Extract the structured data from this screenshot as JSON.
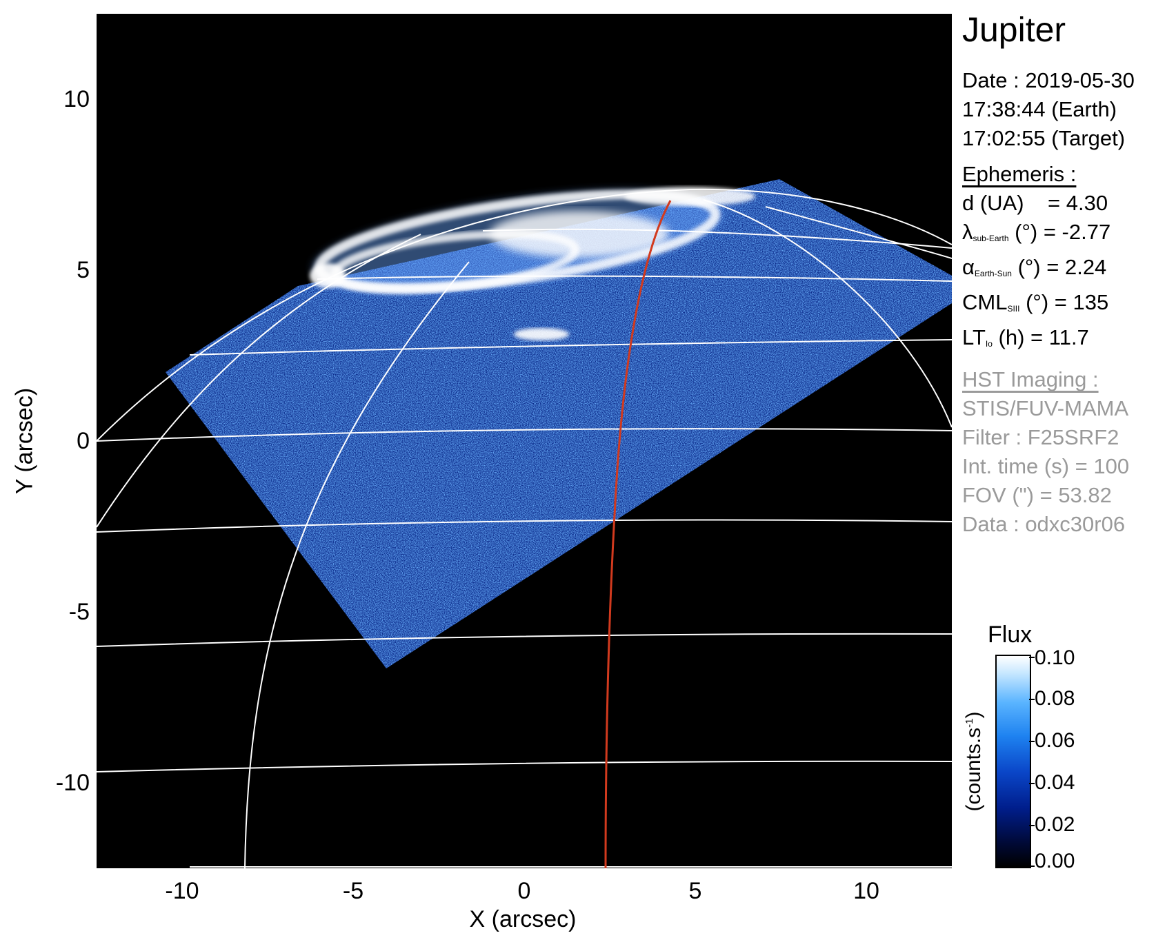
{
  "title": "Jupiter",
  "observation": {
    "date_line": "Date : 2019-05-30",
    "earth_time": "17:38:44 (Earth)",
    "target_time": "17:02:55 (Target)"
  },
  "ephemeris": {
    "header": "Ephemeris :",
    "distance": {
      "label": "d (UA)",
      "value": "= 4.30"
    },
    "sub_earth_lat": {
      "symbol": "λ",
      "subscript": "sub-Earth",
      "unit": "(°)",
      "value": "= -2.77"
    },
    "earth_sun_angle": {
      "symbol": "α",
      "subscript": "Earth-Sun",
      "unit": "(°)",
      "value": "= 2.24"
    },
    "cml": {
      "symbol": "CML",
      "subscript": "SIII",
      "unit": "(°)",
      "value": "= 135"
    },
    "lt_io": {
      "symbol": "LT",
      "subscript": "Io",
      "unit": "(h)",
      "value": "= 11.7"
    }
  },
  "hst": {
    "header": "HST Imaging :",
    "instrument": "STIS/FUV-MAMA",
    "filter": "Filter : F25SRF2",
    "int_time": "Int. time (s) = 100",
    "fov": "FOV (\") = 53.82",
    "data": "Data : odxc30r06"
  },
  "axes": {
    "x_label": "X (arcsec)",
    "y_label": "Y (arcsec)",
    "x_ticks": [
      "-10",
      "-5",
      "0",
      "5",
      "10"
    ],
    "y_ticks": [
      "10",
      "5",
      "0",
      "-5",
      "-10"
    ],
    "x_range": [
      -12.5,
      12.5
    ],
    "y_range": [
      -12.5,
      12.5
    ]
  },
  "colorbar": {
    "title": "Flux",
    "unit_text": "(counts.s",
    "unit_sup": "-1",
    "unit_close": ")",
    "ticks": [
      "0.10",
      "0.08",
      "0.06",
      "0.04",
      "0.02",
      "0.00"
    ],
    "range": [
      0.0,
      0.1
    ]
  },
  "colors": {
    "background": "#000000",
    "grid": "#ffffff",
    "io_footprint": "#d23a1e",
    "aurora_core": "#ffffff",
    "emission": "#1a5adc",
    "inactive_text": "#9a9a9a"
  }
}
